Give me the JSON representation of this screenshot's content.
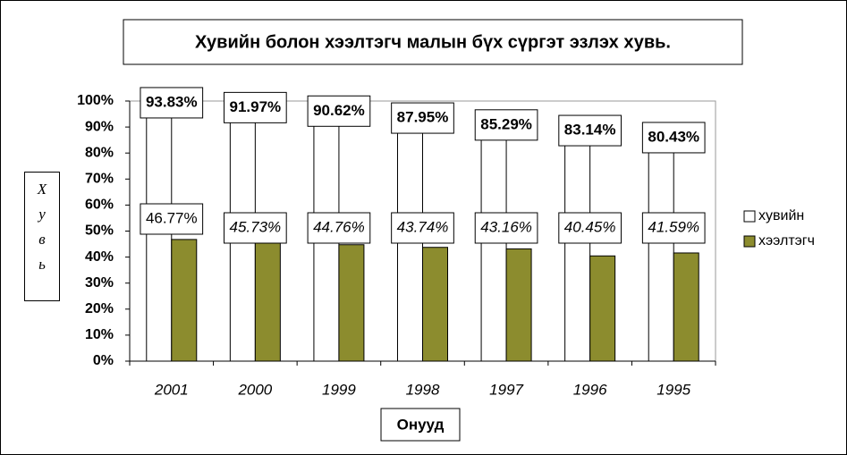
{
  "chart_data": {
    "type": "bar",
    "title": "Хувийн болон хээлтэгч малын бүх сүргэт эзлэх хувь.",
    "xlabel": "Онууд",
    "ylabel": "Хувь",
    "categories": [
      "2001",
      "2000",
      "1999",
      "1998",
      "1997",
      "1996",
      "1995"
    ],
    "series": [
      {
        "name": "хувийн",
        "color": "#ffffff",
        "values": [
          93.83,
          91.97,
          90.62,
          87.95,
          85.29,
          83.14,
          80.43
        ],
        "value_labels": [
          "93.83%",
          "91.97%",
          "90.62%",
          "87.95%",
          "85.29%",
          "83.14%",
          "80.43%"
        ]
      },
      {
        "name": "хээлтэгч",
        "color": "#8c8c2e",
        "values": [
          46.77,
          45.73,
          44.76,
          43.74,
          43.16,
          40.45,
          41.59
        ],
        "value_labels": [
          "46.77%",
          "45.73%",
          "44.76%",
          "43.74%",
          "43.16%",
          "40.45%",
          "41.59%"
        ]
      }
    ],
    "ylim": [
      0,
      100
    ],
    "yticks": [
      {
        "value": 0,
        "label": "0%"
      },
      {
        "value": 10,
        "label": "10%"
      },
      {
        "value": 20,
        "label": "20%"
      },
      {
        "value": 30,
        "label": "30%"
      },
      {
        "value": 40,
        "label": "40%"
      },
      {
        "value": 50,
        "label": "50%"
      },
      {
        "value": 60,
        "label": "60%"
      },
      {
        "value": 70,
        "label": "70%"
      },
      {
        "value": 80,
        "label": "80%"
      },
      {
        "value": 90,
        "label": "90%"
      },
      {
        "value": 100,
        "label": "100%"
      }
    ],
    "legend": "right"
  }
}
